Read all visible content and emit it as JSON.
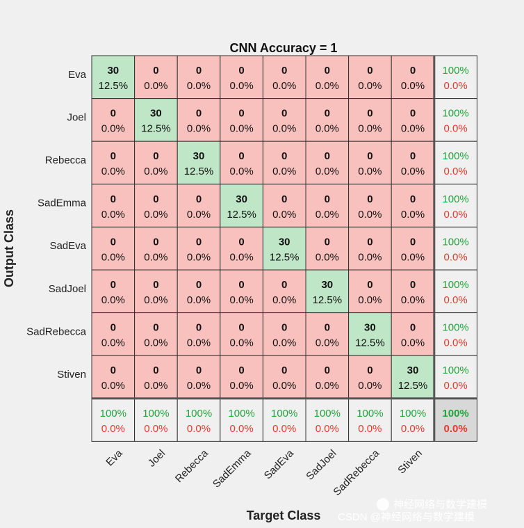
{
  "chart_data": {
    "type": "heatmap",
    "title": "CNN Accuracy  =  1",
    "xlabel": "Target Class",
    "ylabel": "Output Class",
    "classes": [
      "Eva",
      "Joel",
      "Rebecca",
      "SadEmma",
      "SadEva",
      "SadJoel",
      "SadRebecca",
      "Stiven"
    ],
    "matrix": [
      [
        30,
        0,
        0,
        0,
        0,
        0,
        0,
        0
      ],
      [
        0,
        30,
        0,
        0,
        0,
        0,
        0,
        0
      ],
      [
        0,
        0,
        30,
        0,
        0,
        0,
        0,
        0
      ],
      [
        0,
        0,
        0,
        30,
        0,
        0,
        0,
        0
      ],
      [
        0,
        0,
        0,
        0,
        30,
        0,
        0,
        0
      ],
      [
        0,
        0,
        0,
        0,
        0,
        30,
        0,
        0
      ],
      [
        0,
        0,
        0,
        0,
        0,
        0,
        30,
        0
      ],
      [
        0,
        0,
        0,
        0,
        0,
        0,
        0,
        30
      ]
    ],
    "matrix_pct": [
      [
        "12.5%",
        "0.0%",
        "0.0%",
        "0.0%",
        "0.0%",
        "0.0%",
        "0.0%",
        "0.0%"
      ],
      [
        "0.0%",
        "12.5%",
        "0.0%",
        "0.0%",
        "0.0%",
        "0.0%",
        "0.0%",
        "0.0%"
      ],
      [
        "0.0%",
        "0.0%",
        "12.5%",
        "0.0%",
        "0.0%",
        "0.0%",
        "0.0%",
        "0.0%"
      ],
      [
        "0.0%",
        "0.0%",
        "0.0%",
        "12.5%",
        "0.0%",
        "0.0%",
        "0.0%",
        "0.0%"
      ],
      [
        "0.0%",
        "0.0%",
        "0.0%",
        "0.0%",
        "12.5%",
        "0.0%",
        "0.0%",
        "0.0%"
      ],
      [
        "0.0%",
        "0.0%",
        "0.0%",
        "0.0%",
        "0.0%",
        "12.5%",
        "0.0%",
        "0.0%"
      ],
      [
        "0.0%",
        "0.0%",
        "0.0%",
        "0.0%",
        "0.0%",
        "0.0%",
        "12.5%",
        "0.0%"
      ],
      [
        "0.0%",
        "0.0%",
        "0.0%",
        "0.0%",
        "0.0%",
        "0.0%",
        "0.0%",
        "12.5%"
      ]
    ],
    "row_summary": [
      {
        "correct": "100%",
        "error": "0.0%"
      },
      {
        "correct": "100%",
        "error": "0.0%"
      },
      {
        "correct": "100%",
        "error": "0.0%"
      },
      {
        "correct": "100%",
        "error": "0.0%"
      },
      {
        "correct": "100%",
        "error": "0.0%"
      },
      {
        "correct": "100%",
        "error": "0.0%"
      },
      {
        "correct": "100%",
        "error": "0.0%"
      },
      {
        "correct": "100%",
        "error": "0.0%"
      }
    ],
    "col_summary": [
      {
        "correct": "100%",
        "error": "0.0%"
      },
      {
        "correct": "100%",
        "error": "0.0%"
      },
      {
        "correct": "100%",
        "error": "0.0%"
      },
      {
        "correct": "100%",
        "error": "0.0%"
      },
      {
        "correct": "100%",
        "error": "0.0%"
      },
      {
        "correct": "100%",
        "error": "0.0%"
      },
      {
        "correct": "100%",
        "error": "0.0%"
      },
      {
        "correct": "100%",
        "error": "0.0%"
      }
    ],
    "overall": {
      "correct": "100%",
      "error": "0.0%"
    },
    "colors": {
      "diagonal": "#bfe6c6",
      "offdiagonal": "#f9c1bd",
      "summary": "#f0f0f0",
      "overall": "#d8d8d8",
      "correct_text": "#22a33a",
      "error_text": "#e03a2c",
      "grid": "#333333"
    }
  },
  "watermark": {
    "text1": "神经网络与数学建模",
    "text2": "CSDN @神经网络与数学建模"
  }
}
